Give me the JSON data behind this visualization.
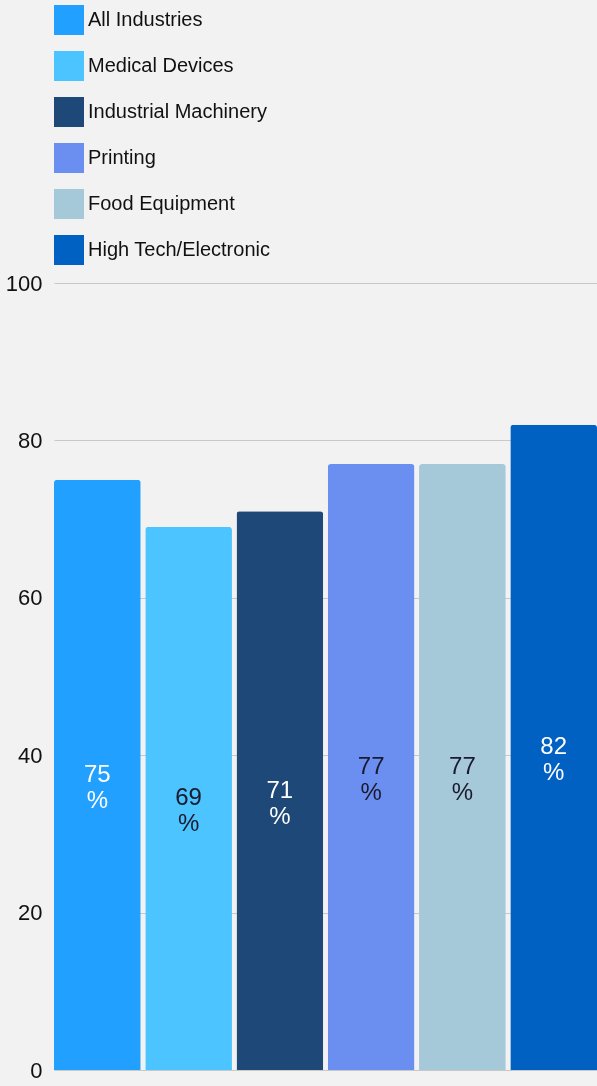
{
  "chart_data": {
    "type": "bar",
    "categories": [
      null,
      null,
      null,
      null,
      null,
      null
    ],
    "series": [
      {
        "name": "All Industries",
        "color": "#22a0ff",
        "values": [
          75,
          null,
          null,
          null,
          null,
          null
        ],
        "value_labels": [
          "75\n%",
          null,
          null,
          null,
          null,
          null
        ]
      },
      {
        "name": "Medical Devices",
        "color": "#4bc4ff",
        "values": [
          null,
          69,
          null,
          null,
          null,
          null
        ],
        "value_labels": [
          null,
          "69\n%",
          null,
          null,
          null,
          null
        ]
      },
      {
        "name": "Industrial Machinery",
        "color": "#1e4878",
        "values": [
          null,
          null,
          71,
          null,
          null,
          null
        ],
        "value_labels": [
          null,
          null,
          "71\n%",
          null,
          null,
          null
        ]
      },
      {
        "name": "Printing",
        "color": "#6b8ff0",
        "values": [
          null,
          null,
          null,
          77,
          null,
          null
        ],
        "value_labels": [
          null,
          null,
          null,
          "77\n%",
          null,
          null
        ]
      },
      {
        "name": "Food Equipment",
        "color": "#a6c9da",
        "values": [
          null,
          null,
          null,
          null,
          77,
          null
        ],
        "value_labels": [
          null,
          null,
          null,
          null,
          "77\n%",
          null
        ]
      },
      {
        "name": "High Tech/Electronic",
        "color": "#0061c2",
        "values": [
          null,
          null,
          null,
          null,
          null,
          82
        ],
        "value_labels": [
          null,
          null,
          null,
          null,
          null,
          "82\n%"
        ]
      }
    ],
    "ylim": [
      0,
      100
    ],
    "yticks": [
      0,
      20,
      40,
      60,
      80,
      100
    ],
    "grid": "y",
    "legend": "top",
    "tick_labels": "y"
  }
}
